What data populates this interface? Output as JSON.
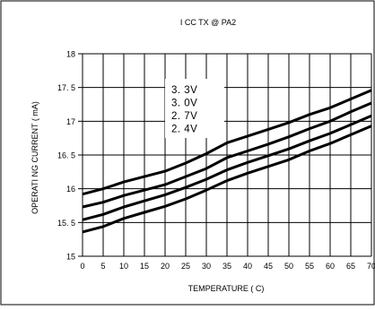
{
  "chart_data": {
    "type": "line",
    "title": "I CC  TX  @ PA2",
    "xlabel": "TEMPERATURE  ( C)",
    "ylabel": "OPERATI NG CURRENT  ( mA)",
    "xlim": [
      0,
      70
    ],
    "ylim": [
      15,
      18
    ],
    "x_ticks": [
      0,
      5,
      10,
      15,
      20,
      25,
      30,
      35,
      40,
      45,
      50,
      55,
      60,
      65,
      70
    ],
    "y_ticks": [
      "15",
      "15. 5",
      "16",
      "16. 5",
      "17",
      "17. 5",
      "18"
    ],
    "grid": true,
    "legend_position": "top-center",
    "x": [
      0,
      5,
      10,
      15,
      20,
      25,
      30,
      35,
      40,
      45,
      50,
      55,
      60,
      65,
      70
    ],
    "series": [
      {
        "name": "3. 3V",
        "values": [
          15.92,
          16.0,
          16.1,
          16.18,
          16.26,
          16.38,
          16.52,
          16.68,
          16.78,
          16.88,
          16.98,
          17.1,
          17.2,
          17.33,
          17.46
        ]
      },
      {
        "name": "3. 0V",
        "values": [
          15.73,
          15.8,
          15.9,
          15.98,
          16.06,
          16.18,
          16.3,
          16.46,
          16.56,
          16.66,
          16.77,
          16.89,
          17.0,
          17.14,
          17.27
        ]
      },
      {
        "name": "2. 7V",
        "values": [
          15.54,
          15.62,
          15.73,
          15.82,
          15.91,
          16.02,
          16.14,
          16.28,
          16.39,
          16.49,
          16.59,
          16.71,
          16.82,
          16.95,
          17.08
        ]
      },
      {
        "name": "2. 4V",
        "values": [
          15.36,
          15.44,
          15.56,
          15.65,
          15.74,
          15.85,
          15.98,
          16.12,
          16.23,
          16.33,
          16.43,
          16.56,
          16.67,
          16.8,
          16.93
        ]
      }
    ]
  }
}
